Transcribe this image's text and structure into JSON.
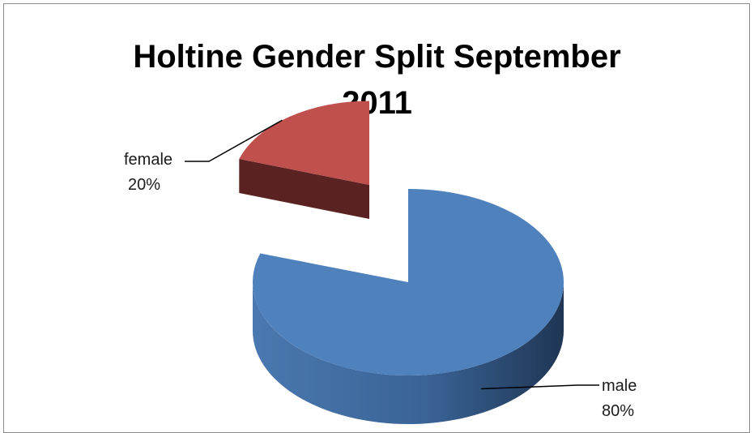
{
  "chart_data": {
    "type": "pie",
    "title_lines": [
      "Holtine Gender Split September",
      "2011"
    ],
    "slices": [
      {
        "label": "male",
        "value": 80,
        "value_label": "80%",
        "color": "#4f81bd",
        "side_color": "#2f4f7a",
        "exploded": false
      },
      {
        "label": "female",
        "value": 20,
        "value_label": "20%",
        "color": "#c0504d",
        "side_color": "#5a2220",
        "exploded": true
      }
    ],
    "style": "3d-exploded",
    "legend": "none",
    "data_labels": "category-and-percent"
  }
}
